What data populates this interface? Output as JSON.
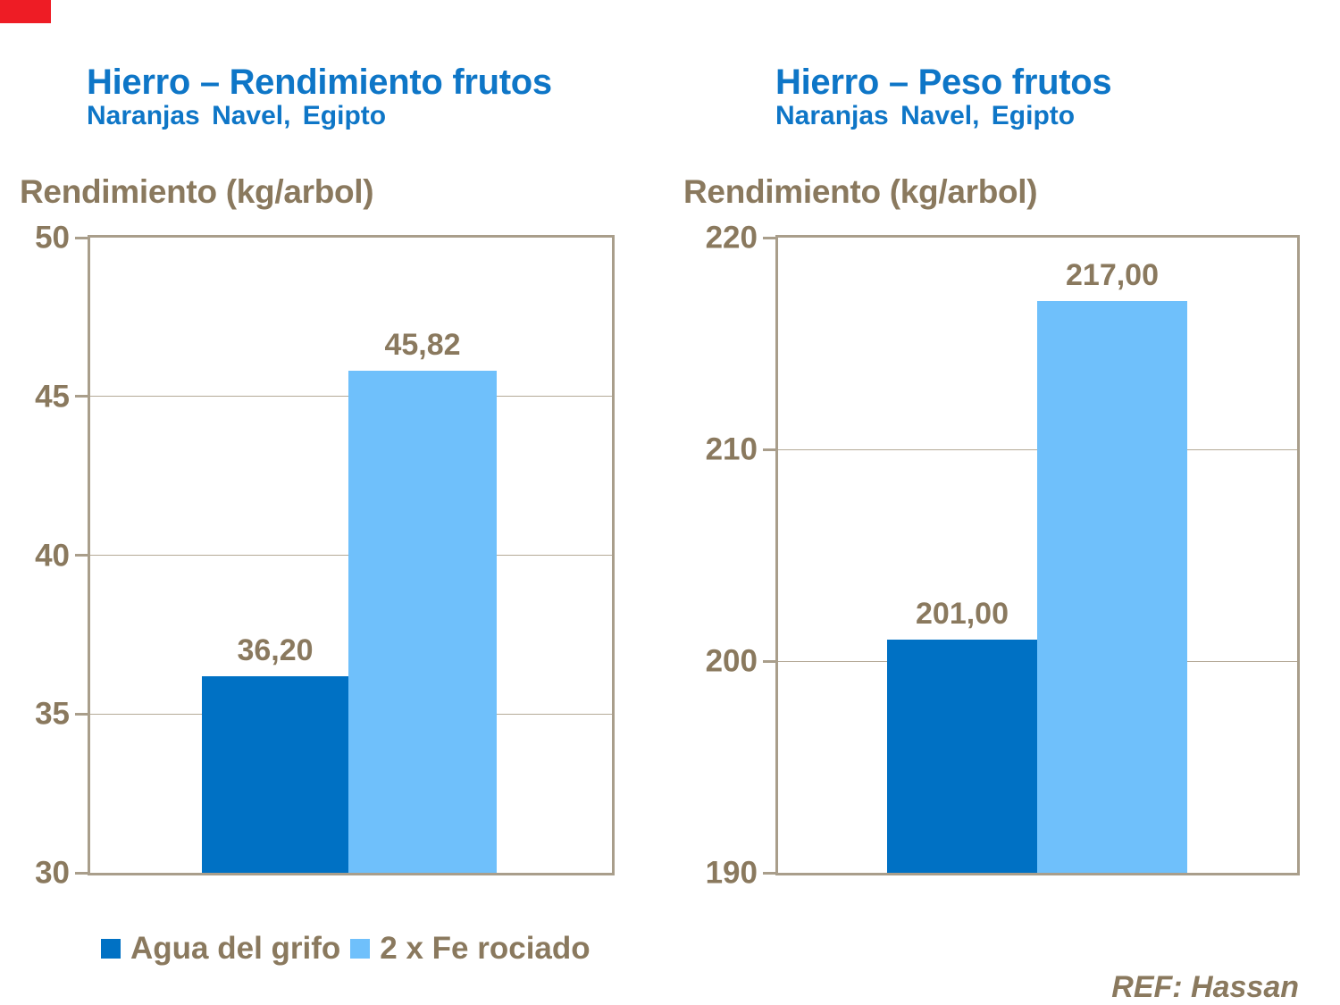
{
  "chart_data": [
    {
      "type": "bar",
      "title": "Hierro – Rendimiento frutos",
      "subtitle": "Naranjas Navel, Egipto",
      "ylabel": "Rendimiento (kg/arbol)",
      "ylim": [
        30,
        50
      ],
      "yticks": [
        50,
        45,
        40,
        35,
        30
      ],
      "categories": [
        "Agua del grifo",
        "2 x Fe rociado"
      ],
      "values": [
        36.2,
        45.82
      ],
      "value_labels": [
        "36,20",
        "45,82"
      ],
      "bar_colors": [
        "#0071c4",
        "#6fc0fb"
      ],
      "grid": true,
      "legend_position": "bottom"
    },
    {
      "type": "bar",
      "title": "Hierro – Peso frutos",
      "subtitle": "Naranjas Navel, Egipto",
      "ylabel": "Rendimiento (kg/arbol)",
      "ylim": [
        190,
        220
      ],
      "yticks": [
        220,
        210,
        200,
        190
      ],
      "categories": [
        "Agua del grifo",
        "2 x Fe rociado"
      ],
      "values": [
        201,
        217
      ],
      "value_labels": [
        "201,00",
        "217,00"
      ],
      "bar_colors": [
        "#0071c4",
        "#6fc0fb"
      ],
      "grid": true,
      "legend_position": "none"
    }
  ],
  "legend": {
    "items": [
      {
        "label": "Agua del grifo",
        "color": "#0071c4"
      },
      {
        "label": "2 x Fe rociado",
        "color": "#6fc0fb"
      }
    ]
  },
  "footer": {
    "ref": "REF: Hassan"
  },
  "decorations": {
    "corner_color": "#ee1c25"
  },
  "colors": {
    "title_blue": "#0e76c7",
    "text_brown": "#8a795e",
    "axis_line": "#a99e8b",
    "gridline": "#b5aa97",
    "dark_bar": "#0071c4",
    "light_bar": "#6fc0fb",
    "background": "#ffffff"
  }
}
